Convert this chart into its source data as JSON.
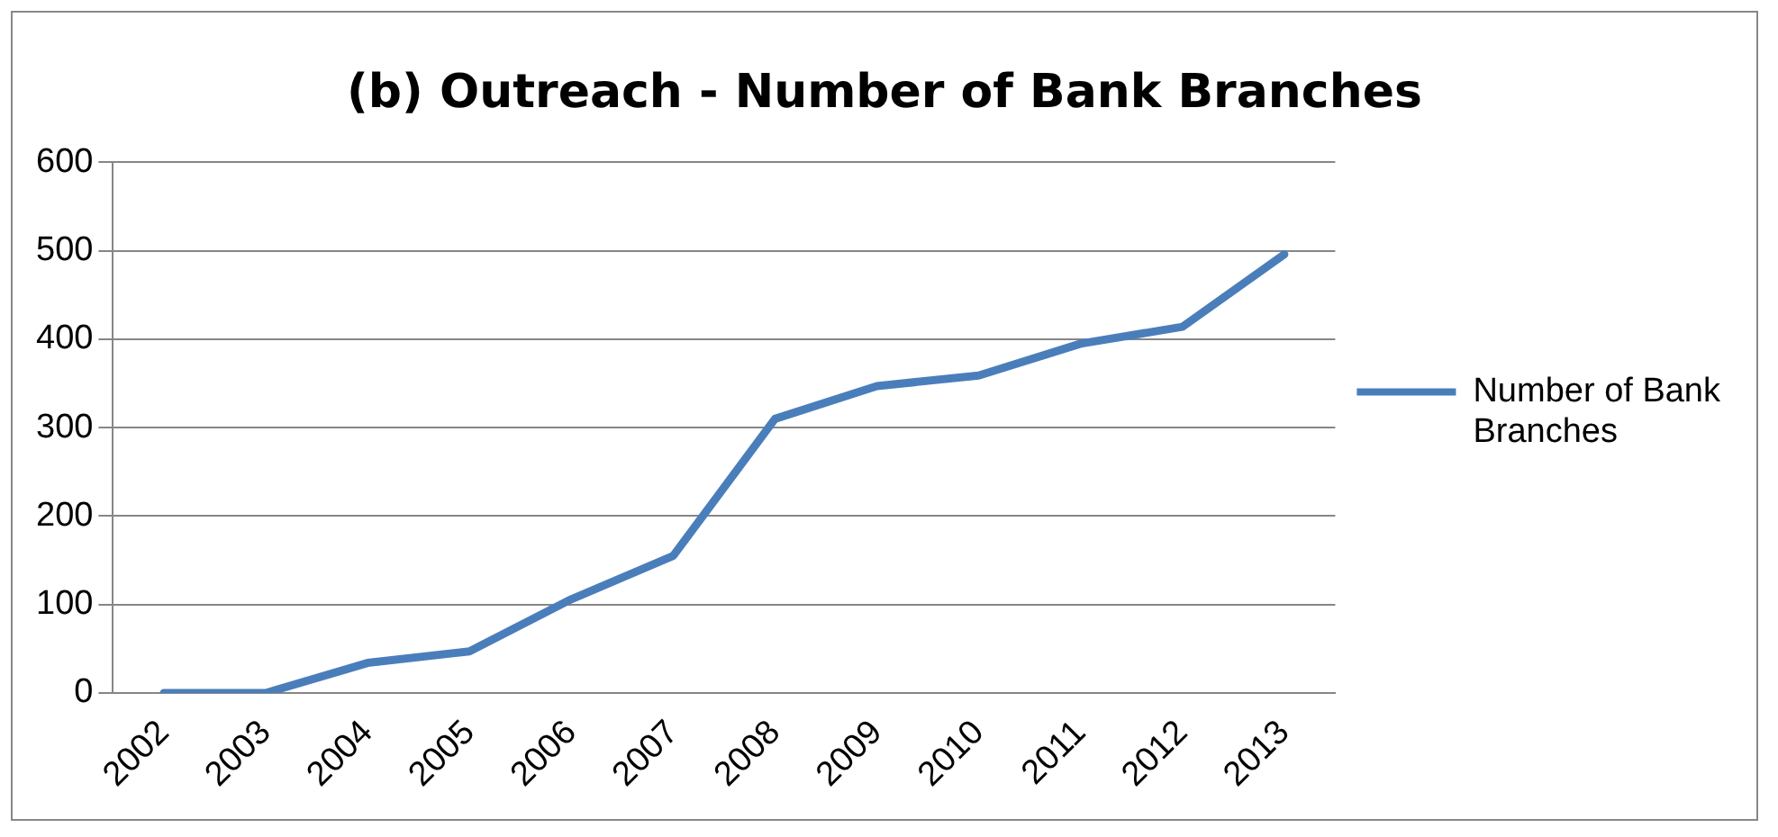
{
  "chart_data": {
    "type": "line",
    "title": "(b) Outreach - Number of Bank Branches",
    "categories": [
      "2002",
      "2003",
      "2004",
      "2005",
      "2006",
      "2007",
      "2008",
      "2009",
      "2010",
      "2011",
      "2012",
      "2013"
    ],
    "series": [
      {
        "name": "Number of Bank Branches",
        "color": "#4a7ebb",
        "values": [
          0,
          0,
          34,
          47,
          106,
          155,
          310,
          347,
          359,
          395,
          414,
          496
        ]
      }
    ],
    "ylim": [
      0,
      600
    ],
    "yticks": [
      0,
      100,
      200,
      300,
      400,
      500,
      600
    ],
    "grid": "y",
    "legend": "right",
    "marker": "none",
    "line_style": "solid"
  }
}
